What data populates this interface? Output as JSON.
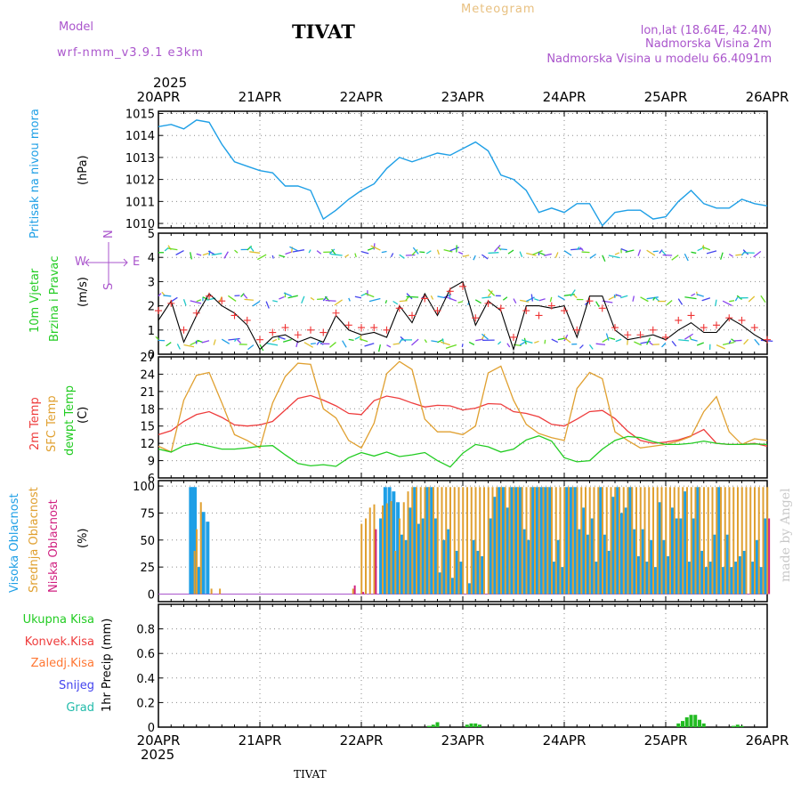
{
  "header": {
    "model_label": "Model",
    "model_name": "wrf-nmm_v3.9.1 e3km",
    "station": "TIVAT",
    "product": "Meteogram",
    "lonlat": "lon,lat (18.64E, 42.4N)",
    "altitude": "Nadmorska Visina 2m",
    "model_altitude": "Nadmorska Visina u modelu 66.4091m",
    "footer_station": "TIVAT",
    "watermark": "made by Angel",
    "year": "2025"
  },
  "colors": {
    "pressure": "#1e9fe6",
    "temp2m": "#ee3c3c",
    "sfc": "#e0a030",
    "dewpt": "#22cc22",
    "cloud_high": "#1e9fe6",
    "cloud_mid": "#e0a030",
    "cloud_low": "#d02080",
    "wind_speed": "#000000",
    "gust": "#ee3333",
    "precip": "#22bb22",
    "purple": "#aa55cc"
  },
  "days": [
    "20APR",
    "21APR",
    "22APR",
    "23APR",
    "24APR",
    "25APR",
    "26APR"
  ],
  "panels": {
    "pressure": {
      "label": "Pritisak na nivou mora",
      "unit": "(hPa)",
      "ticks": [
        "1010",
        "1011",
        "1012",
        "1013",
        "1014",
        "1015"
      ]
    },
    "wind": {
      "label1": "10m Vjetar",
      "label2": "Brzina i Pravac",
      "unit": "(m/s)",
      "ticks": [
        "0",
        "1",
        "2",
        "3",
        "4",
        "5"
      ],
      "compass_n": "N",
      "compass_w": "W",
      "compass_e": "E",
      "compass_s": "S"
    },
    "temp": {
      "label1": "2m Temp",
      "label2": "SFC Temp",
      "label3": "dewpt Temp",
      "unit": "(C)",
      "ticks": [
        "6",
        "9",
        "12",
        "15",
        "18",
        "21",
        "24",
        "27"
      ]
    },
    "cloud": {
      "label1": "Visoka Oblacnost",
      "label2": "Srednja Oblacnost",
      "label3": "Niska Oblacnost",
      "unit": "(%)",
      "ticks": [
        "0",
        "25",
        "50",
        "75",
        "100"
      ]
    },
    "precip": {
      "labels": [
        "Ukupna Kisa",
        "Konvek.Kisa",
        "Zaledj.Kisa",
        "Snijeg",
        "Grad"
      ],
      "unit": "1hr Precip (mm)",
      "ticks": [
        "0",
        "0.2",
        "0.4",
        "0.6",
        "0.8"
      ]
    }
  },
  "chart_data": [
    {
      "type": "line",
      "title": "Pritisak na nivou mora",
      "ylabel": "(hPa)",
      "ylim": [
        1009.8,
        1015.1
      ],
      "x_hours": [
        0,
        3,
        6,
        9,
        12,
        15,
        18,
        21,
        24,
        27,
        30,
        33,
        36,
        39,
        42,
        45,
        48,
        51,
        54,
        57,
        60,
        63,
        66,
        69,
        72,
        75,
        78,
        81,
        84,
        87,
        90,
        93,
        96,
        99,
        102,
        105,
        108,
        111,
        114,
        117,
        120,
        123,
        126,
        129,
        132,
        135,
        138,
        141,
        144
      ],
      "series": [
        {
          "name": "MSLP",
          "values": [
            1014.4,
            1014.5,
            1014.3,
            1014.7,
            1014.6,
            1013.6,
            1012.8,
            1012.6,
            1012.4,
            1012.3,
            1011.7,
            1011.7,
            1011.5,
            1010.2,
            1010.6,
            1011.1,
            1011.5,
            1011.8,
            1012.5,
            1013.0,
            1012.8,
            1013.0,
            1013.2,
            1013.1,
            1013.4,
            1013.7,
            1013.3,
            1012.2,
            1012.0,
            1011.5,
            1010.5,
            1010.7,
            1010.5,
            1010.9,
            1010.9,
            1009.9,
            1010.5,
            1010.6,
            1010.6,
            1010.2,
            1010.3,
            1011.0,
            1011.5,
            1010.9,
            1010.7,
            1010.7,
            1011.1,
            1010.9,
            1010.8
          ]
        }
      ]
    },
    {
      "type": "line",
      "title": "10m Vjetar Brzina i Pravac",
      "ylabel": "(m/s)",
      "ylim": [
        0,
        5
      ],
      "x_hours": [
        0,
        3,
        6,
        9,
        12,
        15,
        18,
        21,
        24,
        27,
        30,
        33,
        36,
        39,
        42,
        45,
        48,
        51,
        54,
        57,
        60,
        63,
        66,
        69,
        72,
        75,
        78,
        81,
        84,
        87,
        90,
        93,
        96,
        99,
        102,
        105,
        108,
        111,
        114,
        117,
        120,
        123,
        126,
        129,
        132,
        135,
        138,
        141,
        144
      ],
      "series": [
        {
          "name": "speed",
          "values": [
            1.4,
            2.2,
            0.5,
            1.6,
            2.5,
            2.0,
            1.7,
            1.2,
            0.2,
            0.7,
            0.8,
            0.5,
            0.7,
            0.5,
            1.6,
            1.0,
            0.8,
            0.9,
            0.7,
            2.0,
            1.3,
            2.5,
            1.6,
            2.7,
            3.0,
            1.2,
            2.2,
            1.8,
            0.2,
            2.0,
            2.0,
            1.9,
            2.0,
            0.7,
            2.4,
            2.4,
            1.0,
            0.6,
            0.7,
            0.8,
            0.6,
            1.0,
            1.3,
            0.9,
            0.9,
            1.5,
            1.2,
            0.8,
            0.5
          ]
        },
        {
          "name": "gust",
          "values": [
            1.8,
            2.1,
            1.0,
            1.7,
            2.4,
            2.2,
            1.6,
            1.4,
            0.6,
            0.9,
            1.1,
            0.8,
            1.0,
            0.9,
            1.7,
            1.2,
            1.1,
            1.1,
            1.0,
            1.9,
            1.6,
            2.3,
            1.8,
            2.6,
            2.8,
            1.5,
            2.1,
            1.9,
            0.7,
            1.8,
            1.6,
            2.0,
            1.8,
            1.0,
            2.2,
            1.9,
            1.1,
            0.8,
            0.8,
            1.0,
            0.7,
            1.4,
            1.6,
            1.1,
            1.2,
            1.5,
            1.4,
            1.1,
            0.6
          ]
        }
      ]
    },
    {
      "type": "line",
      "title": "2m / SFC / dewpt Temp",
      "ylabel": "(C)",
      "ylim": [
        6,
        27
      ],
      "x_hours": [
        0,
        3,
        6,
        9,
        12,
        15,
        18,
        21,
        24,
        27,
        30,
        33,
        36,
        39,
        42,
        45,
        48,
        51,
        54,
        57,
        60,
        63,
        66,
        69,
        72,
        75,
        78,
        81,
        84,
        87,
        90,
        93,
        96,
        99,
        102,
        105,
        108,
        111,
        114,
        117,
        120,
        123,
        126,
        129,
        132,
        135,
        138,
        141,
        144
      ],
      "series": [
        {
          "name": "2m Temp",
          "values": [
            13.5,
            14.2,
            15.8,
            17.0,
            17.5,
            16.5,
            15.2,
            15.0,
            15.2,
            15.8,
            17.8,
            19.8,
            20.3,
            19.5,
            18.5,
            17.2,
            17.0,
            19.4,
            20.2,
            19.8,
            19.0,
            18.3,
            18.6,
            18.5,
            17.8,
            18.1,
            18.9,
            18.8,
            17.5,
            17.2,
            16.6,
            15.3,
            15.0,
            16.2,
            17.5,
            17.7,
            16.3,
            14.1,
            12.5,
            12.0,
            12.2,
            12.6,
            13.3,
            14.4,
            12.0,
            11.8,
            11.8,
            12.0,
            11.5
          ]
        },
        {
          "name": "SFC Temp",
          "values": [
            11.5,
            10.5,
            19.5,
            23.8,
            24.3,
            19.0,
            13.5,
            12.5,
            11.2,
            19.0,
            23.6,
            25.9,
            25.7,
            18.0,
            16.4,
            12.5,
            11.2,
            15.5,
            24.1,
            26.2,
            24.8,
            16.2,
            14.0,
            14.0,
            13.5,
            15.0,
            24.2,
            25.4,
            19.5,
            15.3,
            13.7,
            13.0,
            12.5,
            21.5,
            24.3,
            23.2,
            14.0,
            12.5,
            11.2,
            11.5,
            11.8,
            12.4,
            13.2,
            17.5,
            20.1,
            14.0,
            11.8,
            12.8,
            12.5
          ]
        },
        {
          "name": "dewpt Temp",
          "values": [
            11.0,
            10.5,
            11.6,
            12.0,
            11.5,
            11.0,
            11.0,
            11.2,
            11.5,
            11.6,
            10.0,
            8.5,
            8.1,
            8.3,
            8.0,
            9.5,
            10.4,
            9.8,
            10.5,
            9.7,
            10.0,
            10.4,
            9.0,
            7.9,
            10.3,
            11.8,
            11.4,
            10.5,
            11.0,
            12.6,
            13.3,
            12.4,
            9.5,
            8.8,
            9.0,
            11.0,
            12.5,
            13.2,
            13.0,
            12.3,
            11.8,
            11.8,
            12.0,
            12.4,
            12.0,
            11.8,
            11.8,
            11.9,
            11.8
          ]
        }
      ]
    },
    {
      "type": "bar",
      "title": "Oblacnost",
      "ylabel": "(%)",
      "ylim": [
        0,
        100
      ],
      "x_hours": [
        8,
        8.5,
        9,
        10,
        11,
        12,
        12.5,
        14.5,
        46,
        48,
        49,
        50,
        51,
        53,
        54,
        55,
        56,
        57,
        58,
        59,
        60,
        61,
        62,
        63,
        64,
        65,
        66,
        67,
        68,
        69,
        70,
        71,
        72,
        73,
        74,
        75,
        76,
        77,
        78,
        79,
        80,
        81,
        82,
        83,
        84,
        85,
        86,
        87,
        88,
        89,
        90,
        91,
        92,
        93,
        94,
        95,
        96,
        97,
        98,
        99,
        100,
        101,
        102,
        103,
        104,
        105,
        106,
        107,
        108,
        109,
        110,
        111,
        112,
        113,
        114,
        115,
        116,
        117,
        118,
        119,
        120,
        121,
        122,
        123,
        124,
        125,
        126,
        127,
        128,
        129,
        130,
        131,
        132,
        133,
        134,
        135,
        136,
        137,
        138,
        139,
        140,
        141,
        142,
        143,
        144
      ],
      "series": [
        {
          "name": "Visoka",
          "values": [
            99,
            99,
            99,
            25,
            76,
            67,
            0,
            0,
            0,
            0,
            0,
            0,
            0,
            70,
            99,
            99,
            95,
            85,
            55,
            50,
            80,
            99,
            65,
            70,
            99,
            99,
            70,
            20,
            50,
            60,
            15,
            40,
            30,
            0,
            10,
            50,
            40,
            35,
            0,
            70,
            90,
            99,
            99,
            80,
            99,
            99,
            99,
            60,
            50,
            99,
            99,
            99,
            99,
            99,
            30,
            50,
            25,
            99,
            99,
            99,
            60,
            80,
            55,
            70,
            30,
            99,
            55,
            40,
            90,
            99,
            75,
            80,
            99,
            60,
            35,
            60,
            30,
            50,
            25,
            85,
            50,
            35,
            80,
            70,
            70,
            95,
            30,
            70,
            99,
            40,
            25,
            30,
            55,
            99,
            25,
            55,
            25,
            30,
            35,
            40,
            0,
            30,
            50,
            25,
            70
          ]
        },
        {
          "name": "Srednja",
          "values": [
            0,
            40,
            60,
            85,
            0,
            0,
            5,
            5,
            5,
            65,
            70,
            80,
            83,
            82,
            84,
            86,
            40,
            70,
            85,
            95,
            99,
            99,
            99,
            99,
            99,
            99,
            99,
            99,
            99,
            99,
            99,
            99,
            99,
            99,
            99,
            99,
            99,
            99,
            99,
            99,
            99,
            99,
            99,
            99,
            99,
            99,
            99,
            99,
            99,
            99,
            99,
            99,
            99,
            99,
            99,
            99,
            99,
            99,
            99,
            99,
            99,
            99,
            99,
            99,
            99,
            99,
            99,
            99,
            99,
            99,
            99,
            99,
            99,
            99,
            99,
            99,
            99,
            99,
            99,
            99,
            99,
            99,
            99,
            99,
            99,
            99,
            99,
            99,
            99,
            99,
            99,
            99,
            99,
            99,
            99,
            99,
            99,
            99,
            99,
            99,
            99,
            99,
            99,
            99,
            99
          ]
        },
        {
          "name": "Niska",
          "values": [
            0,
            0,
            0,
            0,
            0,
            0,
            0,
            0,
            8,
            2,
            0,
            0,
            60,
            0,
            0,
            0,
            0,
            0,
            0,
            0,
            0,
            0,
            0,
            0,
            0,
            0,
            0,
            0,
            0,
            0,
            0,
            0,
            0,
            0,
            0,
            0,
            0,
            0,
            0,
            0,
            0,
            0,
            0,
            0,
            0,
            0,
            0,
            0,
            0,
            0,
            0,
            0,
            0,
            0,
            0,
            0,
            0,
            0,
            0,
            0,
            0,
            0,
            0,
            0,
            0,
            0,
            0,
            0,
            0,
            0,
            0,
            0,
            0,
            0,
            0,
            0,
            0,
            0,
            0,
            0,
            0,
            0,
            0,
            0,
            0,
            0,
            0,
            0,
            0,
            0,
            0,
            0,
            0,
            0,
            0,
            0,
            0,
            0,
            0,
            0,
            0,
            0,
            0,
            0,
            70
          ]
        }
      ]
    },
    {
      "type": "bar",
      "title": "1hr Precip",
      "ylabel": "(mm)",
      "ylim": [
        0,
        1.0
      ],
      "x_hours": [
        64,
        65,
        66,
        67,
        68,
        69,
        70,
        71,
        72,
        73,
        74,
        75,
        76,
        77,
        78,
        79,
        80,
        81,
        82,
        83,
        84,
        85,
        86,
        87,
        88,
        89,
        90,
        91,
        92,
        93,
        94,
        95,
        96,
        97,
        98,
        99,
        100,
        101,
        102,
        103,
        104,
        105,
        106,
        107,
        108,
        109,
        110,
        111,
        112,
        113,
        114,
        115,
        116,
        117,
        118,
        119,
        120,
        121,
        122,
        123,
        124,
        125,
        126,
        127,
        128,
        129,
        130,
        131,
        132,
        133,
        134,
        135,
        136,
        137,
        138,
        139,
        140,
        141,
        142,
        143
      ],
      "series": [
        {
          "name": "Ukupna Kisa",
          "values": [
            0.01,
            0.02,
            0.04,
            0,
            0,
            0,
            0,
            0,
            0,
            0.02,
            0.03,
            0.03,
            0.02,
            0,
            0,
            0,
            0,
            0,
            0,
            0,
            0,
            0,
            0,
            0,
            0,
            0,
            0,
            0,
            0,
            0,
            0,
            0,
            0,
            0,
            0,
            0,
            0,
            0,
            0,
            0,
            0,
            0,
            0,
            0,
            0,
            0,
            0,
            0,
            0,
            0,
            0,
            0,
            0,
            0,
            0,
            0,
            0,
            0,
            0,
            0.03,
            0.05,
            0.08,
            0.1,
            0.1,
            0.06,
            0.03,
            0,
            0,
            0,
            0,
            0,
            0,
            0.01,
            0.02,
            0.01,
            0,
            0,
            0,
            0,
            0
          ]
        }
      ]
    }
  ]
}
